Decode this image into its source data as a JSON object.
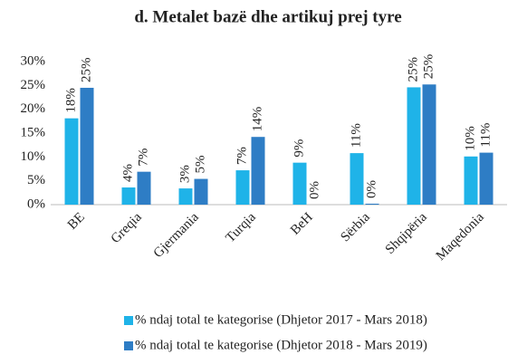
{
  "chart_data": {
    "type": "bar",
    "title": "d. Metalet bazë dhe artikuj prej tyre",
    "categories": [
      "BE",
      "Greqia",
      "Gjermania",
      "Turqia",
      "BeH",
      "Sërbia",
      "Shqipëria",
      "Maqedonia"
    ],
    "series": [
      {
        "name": "% ndaj total te kategorise (Dhjetor 2017 - Mars 2018)",
        "color": "#1fb3e8",
        "values": [
          18.1,
          3.6,
          3.4,
          7.2,
          8.8,
          10.8,
          24.6,
          10.1
        ],
        "value_labels": [
          "18%",
          "4%",
          "3%",
          "7%",
          "9%",
          "11%",
          "25%",
          "10%"
        ]
      },
      {
        "name": "% ndaj total te kategorise (Dhjetor 2018 - Mars 2019)",
        "color": "#2e7dc5",
        "values": [
          24.5,
          6.9,
          5.4,
          14.2,
          0,
          0.2,
          25.2,
          10.9
        ],
        "value_labels": [
          "25%",
          "7%",
          "5%",
          "14%",
          "0%",
          "0%",
          "25%",
          "11%"
        ]
      }
    ],
    "ylim": [
      0,
      30
    ],
    "yticks": [
      {
        "value": 0,
        "label": "0%"
      },
      {
        "value": 5,
        "label": "5%"
      },
      {
        "value": 10,
        "label": "10%"
      },
      {
        "value": 15,
        "label": "15%"
      },
      {
        "value": 20,
        "label": "20%"
      },
      {
        "value": 25,
        "label": "25%"
      },
      {
        "value": 30,
        "label": "30%"
      }
    ],
    "grid": false
  }
}
